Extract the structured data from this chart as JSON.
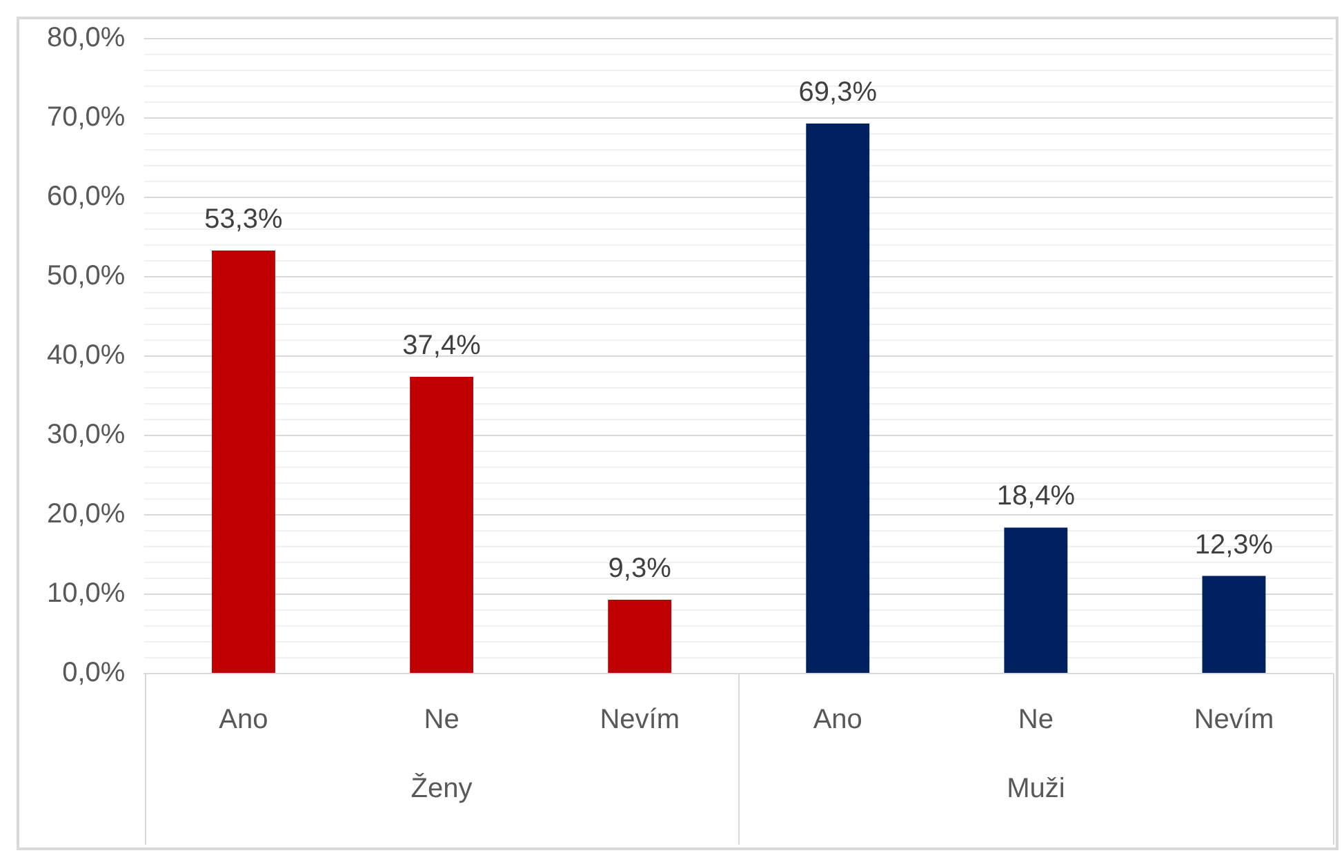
{
  "chart_data": {
    "type": "bar",
    "categories": [
      "Ano",
      "Ne",
      "Nevím",
      "Ano",
      "Ne",
      "Nevím"
    ],
    "series": [
      {
        "color": "#c00000",
        "values": [
          53.3,
          37.4,
          9.3,
          null,
          null,
          null
        ],
        "value_labels": [
          "53,3%",
          "37,4%",
          "9,3%",
          null,
          null,
          null
        ]
      },
      {
        "color": "#002060",
        "values": [
          null,
          null,
          null,
          69.3,
          18.4,
          12.3
        ],
        "value_labels": [
          null,
          null,
          null,
          "69,3%",
          "18,4%",
          "12,3%"
        ]
      }
    ],
    "ylim": [
      0,
      80
    ],
    "yticks": [
      {
        "value": 0,
        "label": "0,0%"
      },
      {
        "value": 2,
        "label": null
      },
      {
        "value": 4,
        "label": null
      },
      {
        "value": 6,
        "label": null
      },
      {
        "value": 8,
        "label": null
      },
      {
        "value": 10,
        "label": "10,0%"
      },
      {
        "value": 12,
        "label": null
      },
      {
        "value": 14,
        "label": null
      },
      {
        "value": 16,
        "label": null
      },
      {
        "value": 18,
        "label": null
      },
      {
        "value": 20,
        "label": "20,0%"
      },
      {
        "value": 22,
        "label": null
      },
      {
        "value": 24,
        "label": null
      },
      {
        "value": 26,
        "label": null
      },
      {
        "value": 28,
        "label": null
      },
      {
        "value": 30,
        "label": "30,0%"
      },
      {
        "value": 32,
        "label": null
      },
      {
        "value": 34,
        "label": null
      },
      {
        "value": 36,
        "label": null
      },
      {
        "value": 38,
        "label": null
      },
      {
        "value": 40,
        "label": "40,0%"
      },
      {
        "value": 42,
        "label": null
      },
      {
        "value": 44,
        "label": null
      },
      {
        "value": 46,
        "label": null
      },
      {
        "value": 48,
        "label": null
      },
      {
        "value": 50,
        "label": "50,0%"
      },
      {
        "value": 52,
        "label": null
      },
      {
        "value": 54,
        "label": null
      },
      {
        "value": 56,
        "label": null
      },
      {
        "value": 58,
        "label": null
      },
      {
        "value": 60,
        "label": "60,0%"
      },
      {
        "value": 62,
        "label": null
      },
      {
        "value": 64,
        "label": null
      },
      {
        "value": 66,
        "label": null
      },
      {
        "value": 68,
        "label": null
      },
      {
        "value": 70,
        "label": "70,0%"
      },
      {
        "value": 72,
        "label": null
      },
      {
        "value": 74,
        "label": null
      },
      {
        "value": 76,
        "label": null
      },
      {
        "value": 78,
        "label": null
      },
      {
        "value": 80,
        "label": "80,0%"
      }
    ],
    "annotations": [
      "Ženy",
      "Muži"
    ],
    "grid": true,
    "legend": false
  }
}
